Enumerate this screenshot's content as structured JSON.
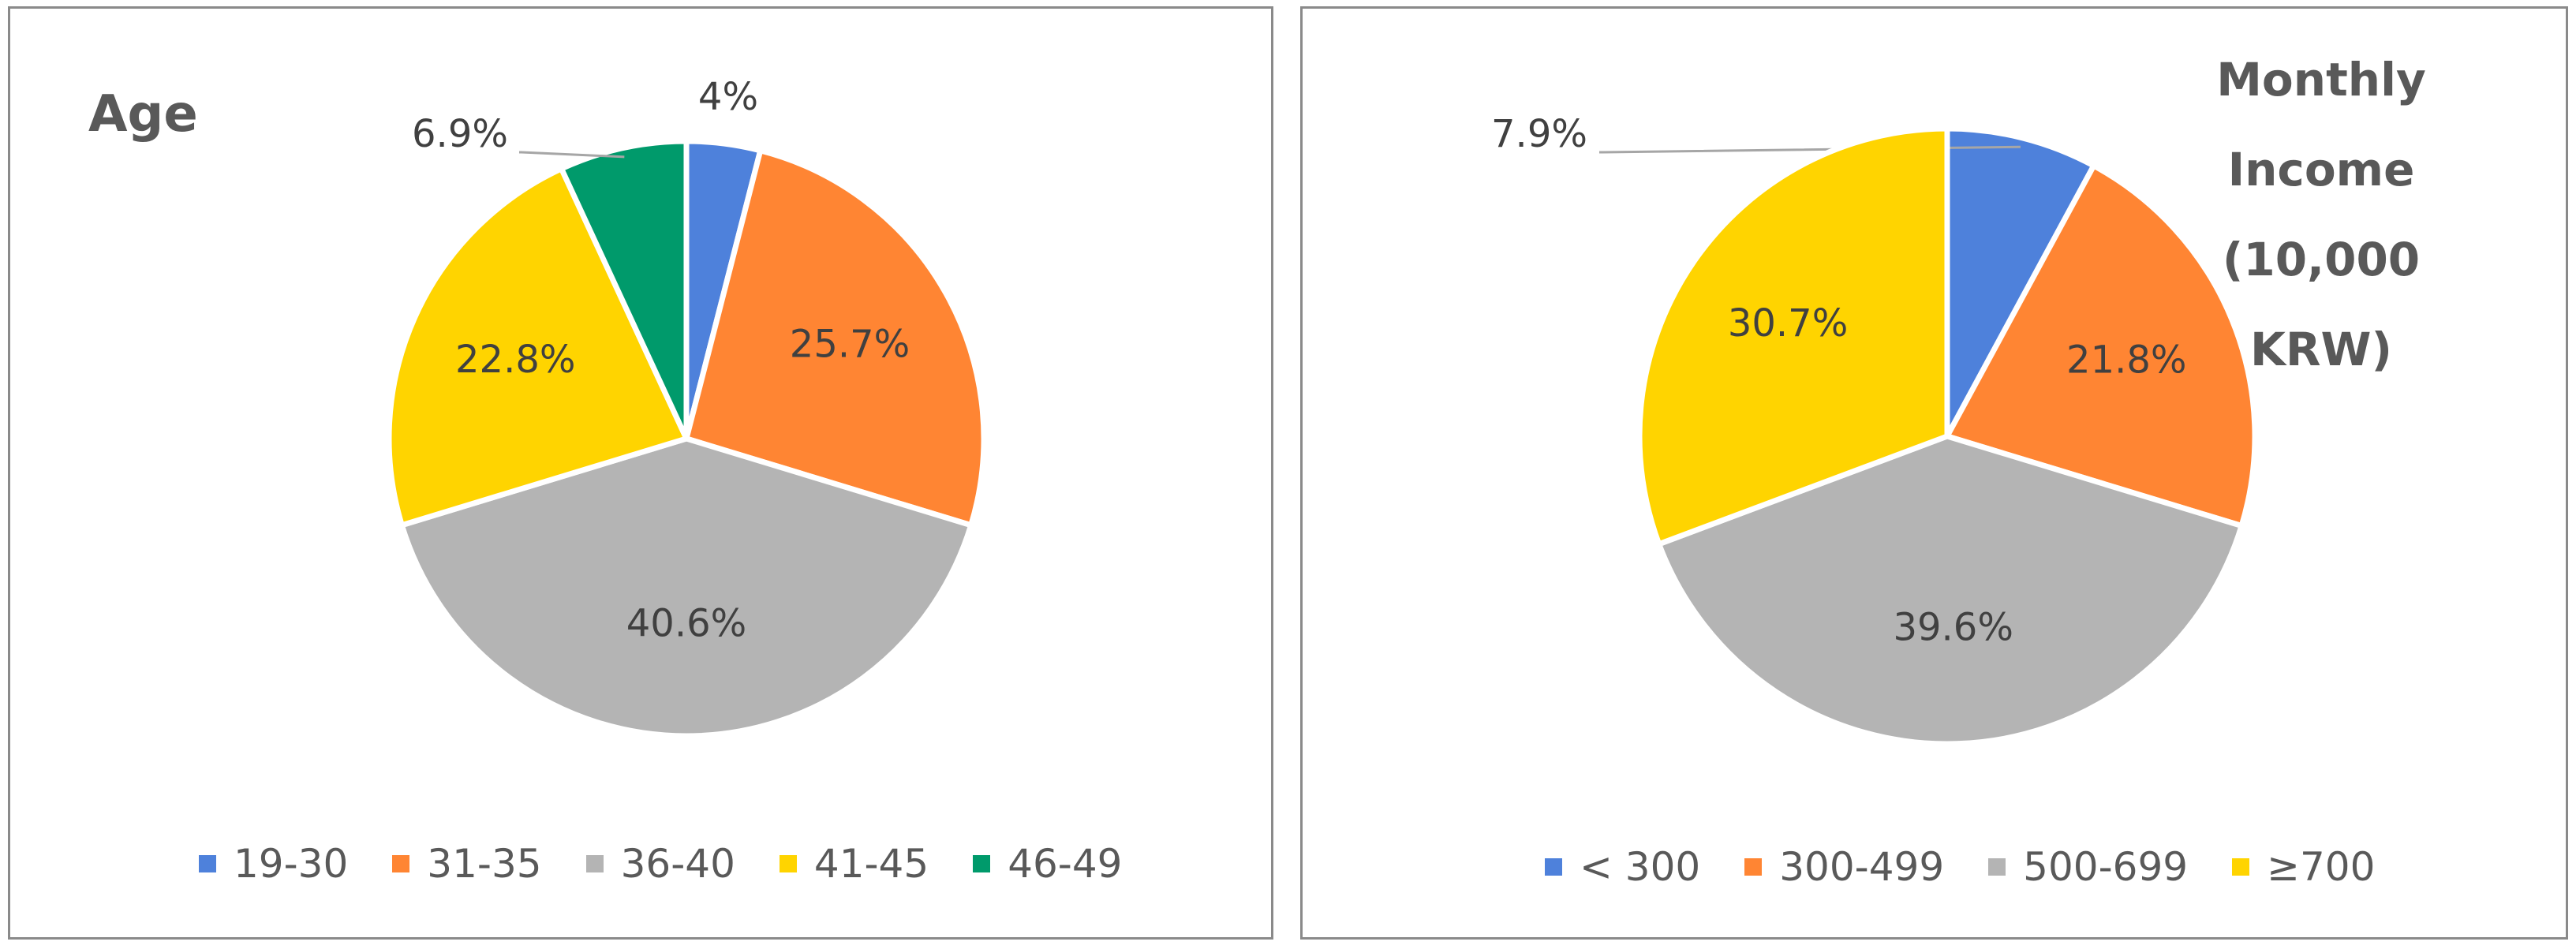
{
  "chart_data": [
    {
      "type": "pie",
      "title": "Age",
      "categories": [
        "19-30",
        "31-35",
        "36-40",
        "41-45",
        "46-49"
      ],
      "values": [
        4.0,
        25.7,
        40.6,
        22.8,
        6.9
      ],
      "labels": [
        "4%",
        "25.7%",
        "40.6%",
        "22.8%",
        "6.9%"
      ],
      "colors": [
        "#4E81DB",
        "#FF8533",
        "#B4B4B4",
        "#FFD400",
        "#009A6B"
      ],
      "legend": "bottom"
    },
    {
      "type": "pie",
      "title": "Monthly\nIncome\n(10,000 KRW)",
      "categories": [
        "< 300",
        "300-499",
        "500-699",
        "≥700"
      ],
      "values": [
        7.9,
        21.8,
        39.6,
        30.7
      ],
      "labels": [
        "7.9%",
        "21.8%",
        "39.6%",
        "30.7%"
      ],
      "colors": [
        "#4E81DB",
        "#FF8533",
        "#B4B4B4",
        "#FFD400"
      ],
      "legend": "bottom"
    }
  ]
}
